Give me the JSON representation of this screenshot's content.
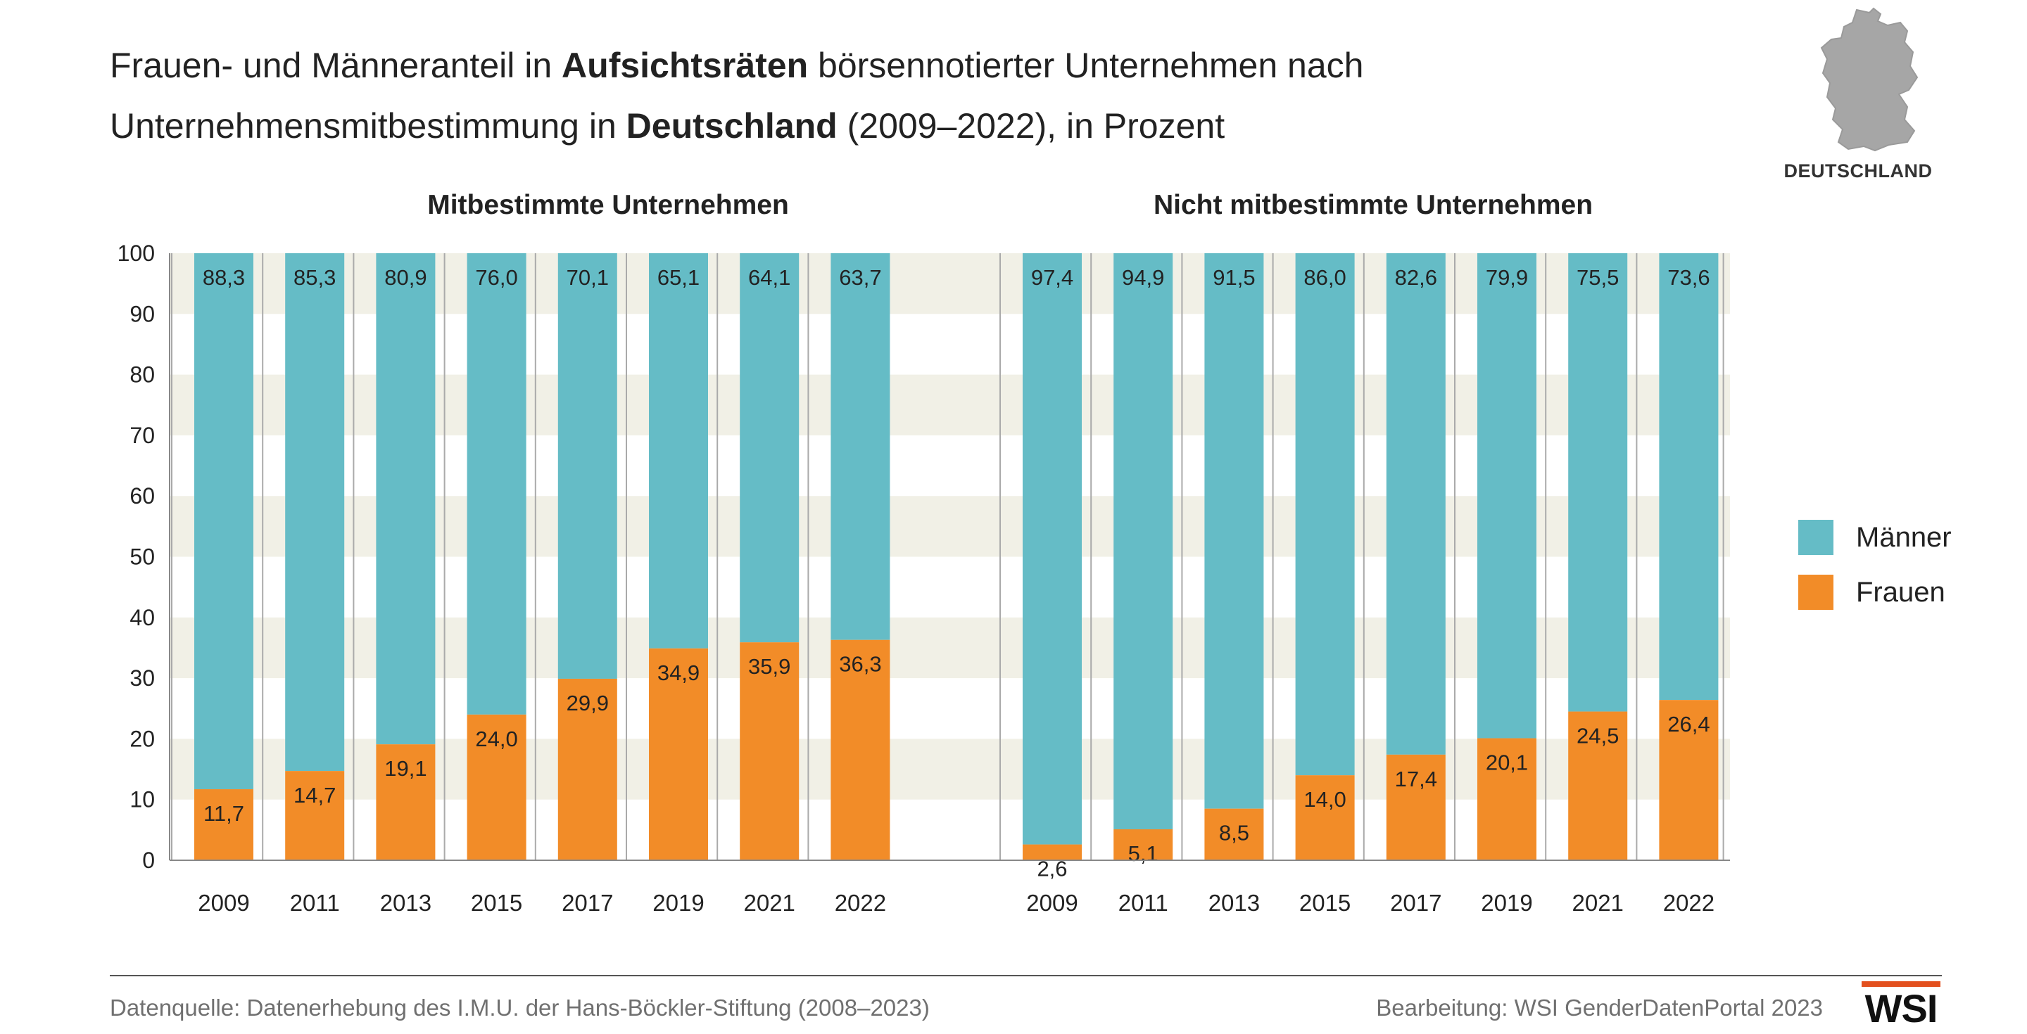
{
  "title": {
    "line1_a": "Frauen- und Männeranteil in ",
    "line1_b": "Aufsichtsräten",
    "line1_c": " börsennotierter Unternehmen nach",
    "line2_a": "Unternehmensmitbestimmung in ",
    "line2_b": "Deutschland",
    "line2_c": " (2009–2022), in Prozent"
  },
  "map": {
    "label": "DEUTSCHLAND",
    "icon": "germany-map-icon"
  },
  "legend": [
    {
      "label": "Männer",
      "color": "#65bcc6"
    },
    {
      "label": "Frauen",
      "color": "#f28c28"
    }
  ],
  "footer": {
    "source": "Datenquelle: Datenerhebung des I.M.U. der Hans-Böckler-Stiftung (2008–2023)",
    "editor": "Bearbeitung: WSI GenderDatenPortal 2023",
    "logo_text": "WSI"
  },
  "chart_data": [
    {
      "type": "bar",
      "stacked": true,
      "title": "Mitbestimmte Unternehmen",
      "categories": [
        "2009",
        "2011",
        "2013",
        "2015",
        "2017",
        "2019",
        "2021",
        "2022"
      ],
      "series": [
        {
          "name": "Frauen",
          "values": [
            11.7,
            14.7,
            19.1,
            24.0,
            29.9,
            34.9,
            35.9,
            36.3
          ],
          "labels": [
            "11,7",
            "14,7",
            "19,1",
            "24,0",
            "29,9",
            "34,9",
            "35,9",
            "36,3"
          ],
          "color": "#f28c28"
        },
        {
          "name": "Männer",
          "values": [
            88.3,
            85.3,
            80.9,
            76.0,
            70.1,
            65.1,
            64.1,
            63.7
          ],
          "labels": [
            "88,3",
            "85,3",
            "80,9",
            "76,0",
            "70,1",
            "65,1",
            "64,1",
            "63,7"
          ],
          "color": "#65bcc6"
        }
      ],
      "ylim": [
        0,
        100
      ],
      "yticks": [
        "0",
        "10",
        "20",
        "30",
        "40",
        "50",
        "60",
        "70",
        "80",
        "90",
        "100"
      ],
      "grid": "horizontal bands"
    },
    {
      "type": "bar",
      "stacked": true,
      "title": "Nicht mitbestimmte Unternehmen",
      "categories": [
        "2009",
        "2011",
        "2013",
        "2015",
        "2017",
        "2019",
        "2021",
        "2022"
      ],
      "series": [
        {
          "name": "Frauen",
          "values": [
            2.6,
            5.1,
            8.5,
            14.0,
            17.4,
            20.1,
            24.5,
            26.4
          ],
          "labels": [
            "2,6",
            "5,1",
            "8,5",
            "14,0",
            "17,4",
            "20,1",
            "24,5",
            "26,4"
          ],
          "color": "#f28c28"
        },
        {
          "name": "Männer",
          "values": [
            97.4,
            94.9,
            91.5,
            86.0,
            82.6,
            79.9,
            75.5,
            73.6
          ],
          "labels": [
            "97,4",
            "94,9",
            "91,5",
            "86,0",
            "82,6",
            "79,9",
            "75,5",
            "73,6"
          ],
          "color": "#65bcc6"
        }
      ],
      "ylim": [
        0,
        100
      ]
    }
  ],
  "colors": {
    "band": "#f1f0e6",
    "divider": "#aaaaaa",
    "axis": "#888888"
  }
}
